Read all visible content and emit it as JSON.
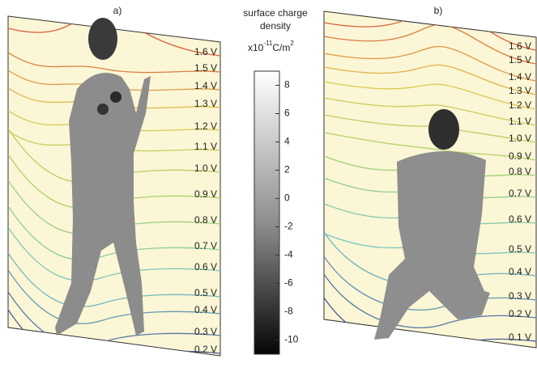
{
  "panel_a": {
    "label": "a)",
    "contours": [
      "1.6 V",
      "1.5 V",
      "1.4 V",
      "1.3 V",
      "1.2 V",
      "1.1 V",
      "1.0 V",
      "0.9 V",
      "0.8 V",
      "0.7 V",
      "0.6 V",
      "0.5 V",
      "0.4 V",
      "0.3 V",
      "0.2 V"
    ]
  },
  "panel_b": {
    "label": "b)",
    "contours": [
      "1.6 V",
      "1.5 V",
      "1.4 V",
      "1.3 V",
      "1.2 V",
      "1.1 V",
      "1.0 V",
      "0.9 V",
      "0.8 V",
      "0.7 V",
      "0.6 V",
      "0.5 V",
      "0.4 V",
      "0.3 V",
      "0.2 V",
      "0.1 V"
    ]
  },
  "colorbar": {
    "title_line1": "surface charge",
    "title_line2": "density",
    "unit_base": "x10",
    "unit_exponent": "-11",
    "unit_tail": "C/m",
    "unit_tail_exponent": "2",
    "range": [
      -11,
      9
    ],
    "ticks": [
      8,
      6,
      4,
      2,
      0,
      -2,
      -4,
      -6,
      -8,
      -10
    ]
  }
}
